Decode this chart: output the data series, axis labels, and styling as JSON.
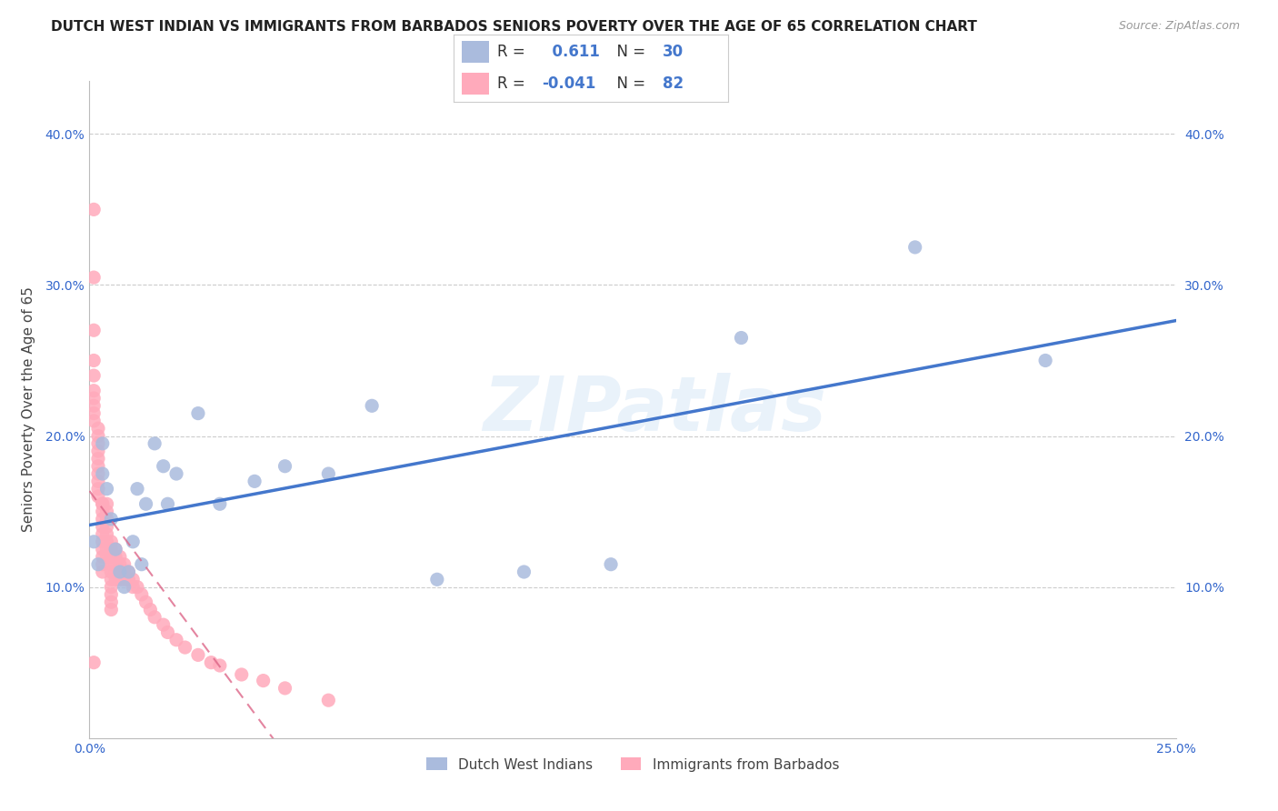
{
  "title": "DUTCH WEST INDIAN VS IMMIGRANTS FROM BARBADOS SENIORS POVERTY OVER THE AGE OF 65 CORRELATION CHART",
  "source": "Source: ZipAtlas.com",
  "ylabel": "Seniors Poverty Over the Age of 65",
  "xlim": [
    0.0,
    0.25
  ],
  "ylim": [
    0.0,
    0.435
  ],
  "xticks": [
    0.0,
    0.05,
    0.1,
    0.15,
    0.2,
    0.25
  ],
  "yticks": [
    0.1,
    0.2,
    0.3,
    0.4
  ],
  "background_color": "#ffffff",
  "watermark_text": "ZIPatlas",
  "blue_color": "#aabbdd",
  "blue_line_color": "#4477cc",
  "pink_color": "#ffaabb",
  "pink_line_color": "#dd6688",
  "blue_R": 0.611,
  "blue_N": 30,
  "pink_R": -0.041,
  "pink_N": 82,
  "blue_scatter_x": [
    0.001,
    0.002,
    0.003,
    0.003,
    0.004,
    0.005,
    0.006,
    0.007,
    0.008,
    0.009,
    0.01,
    0.011,
    0.012,
    0.013,
    0.015,
    0.017,
    0.018,
    0.02,
    0.025,
    0.03,
    0.038,
    0.045,
    0.055,
    0.065,
    0.08,
    0.1,
    0.12,
    0.15,
    0.19,
    0.22
  ],
  "blue_scatter_y": [
    0.13,
    0.115,
    0.175,
    0.195,
    0.165,
    0.145,
    0.125,
    0.11,
    0.1,
    0.11,
    0.13,
    0.165,
    0.115,
    0.155,
    0.195,
    0.18,
    0.155,
    0.175,
    0.215,
    0.155,
    0.17,
    0.18,
    0.175,
    0.22,
    0.105,
    0.11,
    0.115,
    0.265,
    0.325,
    0.25
  ],
  "pink_scatter_x": [
    0.001,
    0.001,
    0.001,
    0.001,
    0.001,
    0.001,
    0.001,
    0.001,
    0.001,
    0.001,
    0.001,
    0.002,
    0.002,
    0.002,
    0.002,
    0.002,
    0.002,
    0.002,
    0.002,
    0.002,
    0.002,
    0.003,
    0.003,
    0.003,
    0.003,
    0.003,
    0.003,
    0.003,
    0.003,
    0.003,
    0.003,
    0.003,
    0.004,
    0.004,
    0.004,
    0.004,
    0.004,
    0.004,
    0.004,
    0.004,
    0.005,
    0.005,
    0.005,
    0.005,
    0.005,
    0.005,
    0.005,
    0.005,
    0.005,
    0.005,
    0.006,
    0.006,
    0.006,
    0.006,
    0.006,
    0.007,
    0.007,
    0.007,
    0.007,
    0.008,
    0.008,
    0.008,
    0.009,
    0.009,
    0.01,
    0.01,
    0.011,
    0.012,
    0.013,
    0.014,
    0.015,
    0.017,
    0.018,
    0.02,
    0.022,
    0.025,
    0.028,
    0.03,
    0.035,
    0.04,
    0.045,
    0.055
  ],
  "pink_scatter_y": [
    0.35,
    0.305,
    0.27,
    0.25,
    0.24,
    0.23,
    0.225,
    0.22,
    0.215,
    0.21,
    0.05,
    0.205,
    0.2,
    0.195,
    0.19,
    0.185,
    0.18,
    0.175,
    0.17,
    0.165,
    0.16,
    0.155,
    0.155,
    0.15,
    0.145,
    0.14,
    0.135,
    0.13,
    0.125,
    0.12,
    0.115,
    0.11,
    0.155,
    0.15,
    0.145,
    0.14,
    0.135,
    0.13,
    0.125,
    0.12,
    0.13,
    0.125,
    0.12,
    0.115,
    0.11,
    0.105,
    0.1,
    0.095,
    0.09,
    0.085,
    0.125,
    0.12,
    0.115,
    0.11,
    0.105,
    0.12,
    0.115,
    0.11,
    0.105,
    0.115,
    0.11,
    0.105,
    0.11,
    0.105,
    0.105,
    0.1,
    0.1,
    0.095,
    0.09,
    0.085,
    0.08,
    0.075,
    0.07,
    0.065,
    0.06,
    0.055,
    0.05,
    0.048,
    0.042,
    0.038,
    0.033,
    0.025
  ],
  "legend_labels": [
    "Dutch West Indians",
    "Immigrants from Barbados"
  ],
  "grid_color": "#cccccc",
  "title_fontsize": 11,
  "axis_fontsize": 11,
  "tick_fontsize": 10,
  "source_fontsize": 9
}
